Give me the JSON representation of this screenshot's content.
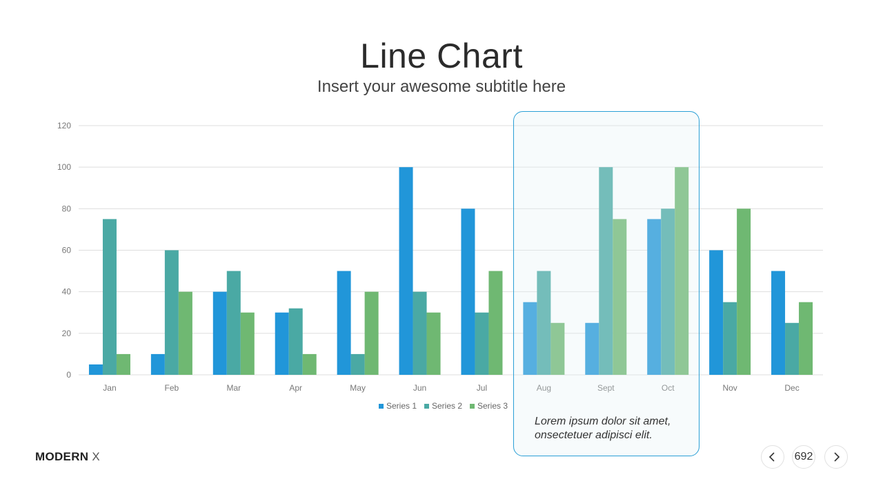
{
  "header": {
    "title": "Line Chart",
    "subtitle": "Insert your awesome subtitle here"
  },
  "callout": {
    "text": "Lorem ipsum dolor sit amet, onsectetuer adipisci elit."
  },
  "footer": {
    "brand_bold": "MODERN",
    "brand_light": "X",
    "page_number": "692",
    "prev_icon": "chevron-left-icon",
    "next_icon": "chevron-right-icon"
  },
  "colors": {
    "series1": "#2196d9",
    "series2": "#4aa9a4",
    "series3": "#6fb872",
    "highlight_border": "#2a9fd6"
  },
  "chart_data": {
    "type": "bar",
    "title": "",
    "xlabel": "",
    "ylabel": "",
    "ylim": [
      0,
      120
    ],
    "yticks": [
      0,
      20,
      40,
      60,
      80,
      100,
      120
    ],
    "grid": true,
    "legend_position": "bottom",
    "categories": [
      "Jan",
      "Feb",
      "Mar",
      "Apr",
      "May",
      "Jun",
      "Jul",
      "Aug",
      "Sept",
      "Oct",
      "Nov",
      "Dec"
    ],
    "series": [
      {
        "name": "Series 1",
        "color": "#2196d9",
        "values": [
          5,
          10,
          40,
          30,
          50,
          100,
          80,
          35,
          25,
          75,
          60,
          50
        ]
      },
      {
        "name": "Series 2",
        "color": "#4aa9a4",
        "values": [
          75,
          60,
          50,
          32,
          10,
          40,
          30,
          50,
          100,
          80,
          35,
          25
        ]
      },
      {
        "name": "Series 3",
        "color": "#6fb872",
        "values": [
          10,
          40,
          30,
          10,
          40,
          30,
          50,
          25,
          75,
          100,
          80,
          35
        ]
      }
    ],
    "highlight_categories": [
      "Aug",
      "Sept",
      "Oct"
    ]
  }
}
